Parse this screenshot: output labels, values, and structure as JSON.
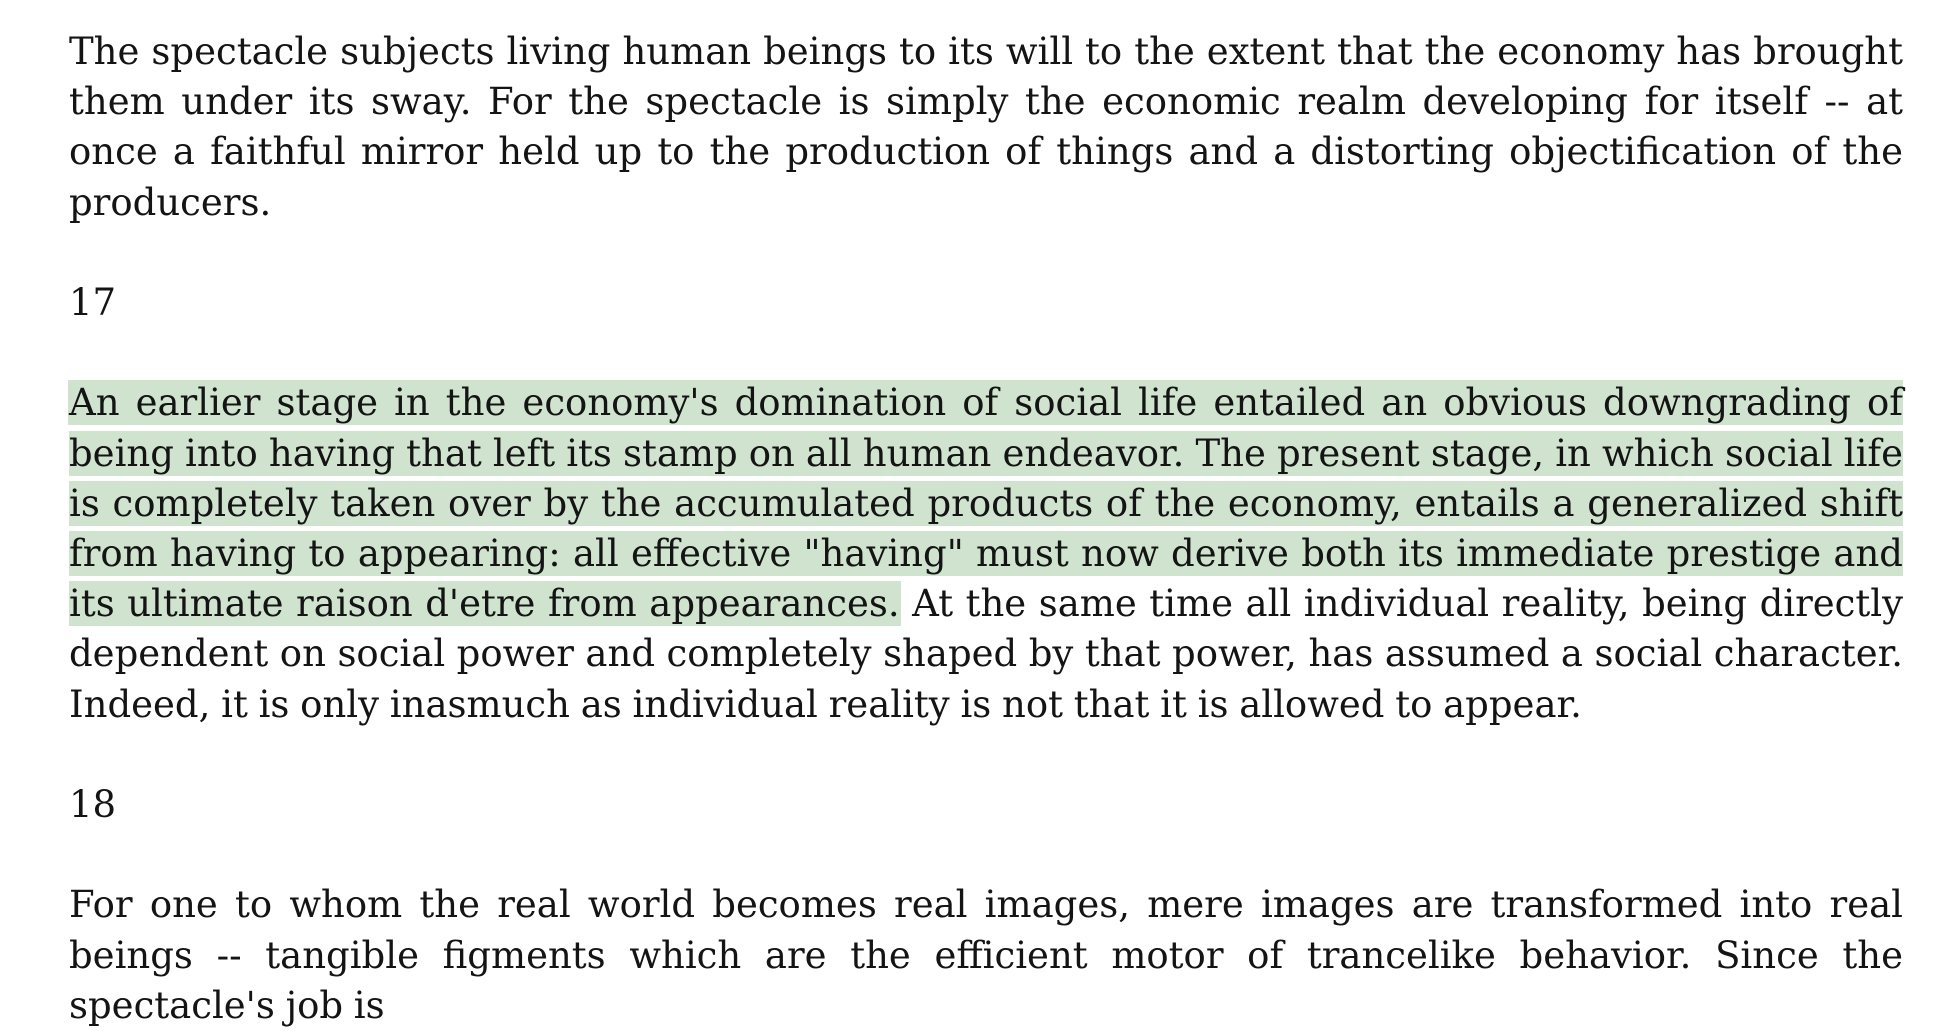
{
  "document": {
    "paragraph_16": "The spectacle subjects living human beings to its will to the extent that the economy has brought them under its sway. For the spectacle is simply the economic realm developing for itself -- at once a faithful mirror held up to the production of things and a distorting objectification of the producers.",
    "section_17_number": "17",
    "paragraph_17_highlighted": "An earlier stage in the economy's domination of social life entailed an obvious downgrading of being into having that left its stamp on all human endeavor. The present stage, in which social life is completely taken over by the accumulated products of the economy, entails a generalized shift from having to appearing: all effective \"having\" must now derive both its immediate prestige and its ultimate raison d'etre from appearances.",
    "paragraph_17_rest": " At the same time all individual reality, being directly dependent on social power and completely shaped by that power, has assumed a social character. Indeed, it is only inasmuch as individual reality is not that it is allowed to appear.",
    "section_18_number": "18",
    "paragraph_18": "For one to whom the real world becomes real images, mere images are transformed into real beings -- tangible figments which are the efficient motor of trancelike behavior. Since the spectacle's job is"
  },
  "colors": {
    "highlight": "#cfe3cf",
    "text": "#141414",
    "background": "#ffffff"
  }
}
